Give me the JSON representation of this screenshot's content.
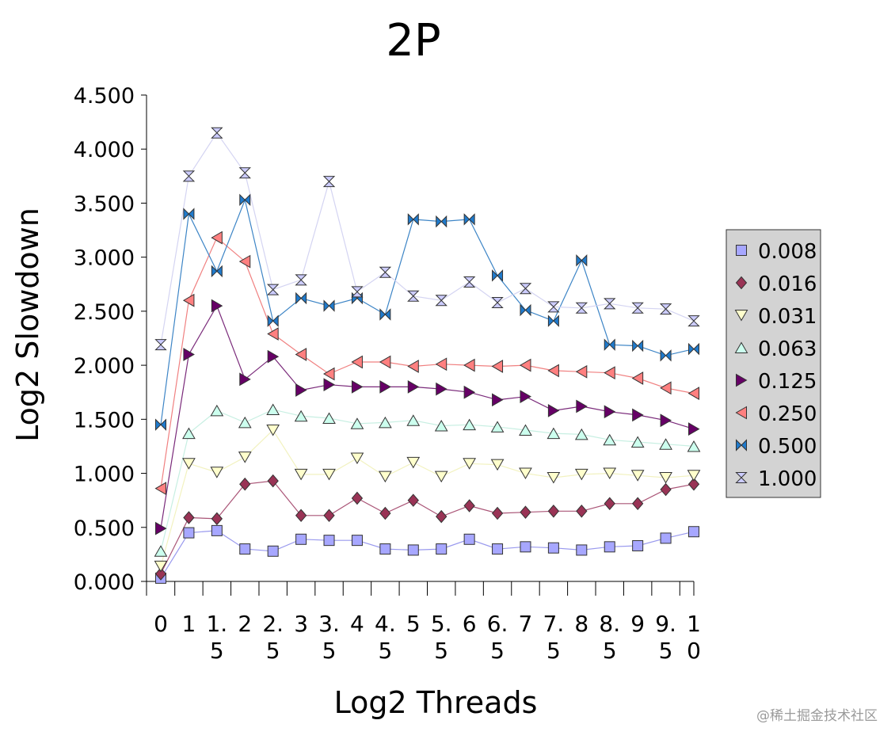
{
  "chart_data": {
    "type": "line",
    "title": "2P",
    "xlabel": "Log2 Threads",
    "ylabel": "Log2 Slowdown",
    "ylim": [
      0,
      4.5
    ],
    "yticks": [
      "0.000",
      "0.500",
      "1.000",
      "1.500",
      "2.000",
      "2.500",
      "3.000",
      "3.500",
      "4.000",
      "4.500"
    ],
    "x": [
      0,
      1,
      1.5,
      2,
      2.5,
      3,
      3.5,
      4,
      4.5,
      5,
      5.5,
      6,
      6.5,
      7,
      7.5,
      8,
      8.5,
      9,
      9.5,
      10
    ],
    "xtick_labels": [
      [
        "0"
      ],
      [
        "1"
      ],
      [
        "1.",
        "5"
      ],
      [
        "2"
      ],
      [
        "2.",
        "5"
      ],
      [
        "3"
      ],
      [
        "3.",
        "5"
      ],
      [
        "4"
      ],
      [
        "4.",
        "5"
      ],
      [
        "5"
      ],
      [
        "5.",
        "5"
      ],
      [
        "6"
      ],
      [
        "6.",
        "5"
      ],
      [
        "7"
      ],
      [
        "7.",
        "5"
      ],
      [
        "8"
      ],
      [
        "8.",
        "5"
      ],
      [
        "9"
      ],
      [
        "9.",
        "5"
      ],
      [
        "1",
        "0"
      ]
    ],
    "legend_position": "right",
    "series": [
      {
        "name": "0.008",
        "marker": "square",
        "color": "#a7a7ff",
        "line": "#9999ee",
        "values": [
          0.03,
          0.45,
          0.47,
          0.3,
          0.28,
          0.39,
          0.38,
          0.38,
          0.3,
          0.29,
          0.3,
          0.39,
          0.3,
          0.32,
          0.31,
          0.29,
          0.32,
          0.33,
          0.4,
          0.46
        ]
      },
      {
        "name": "0.016",
        "marker": "diamond",
        "color": "#993355",
        "line": "#aa5577",
        "values": [
          0.07,
          0.59,
          0.58,
          0.9,
          0.93,
          0.61,
          0.61,
          0.77,
          0.63,
          0.75,
          0.6,
          0.7,
          0.63,
          0.64,
          0.65,
          0.65,
          0.72,
          0.72,
          0.85,
          0.9
        ]
      },
      {
        "name": "0.031",
        "marker": "triangle-down",
        "color": "#ffffcc",
        "line": "#f2f2c0",
        "values": [
          0.14,
          1.09,
          1.01,
          1.15,
          1.4,
          0.99,
          0.99,
          1.14,
          0.97,
          1.1,
          0.97,
          1.09,
          1.08,
          1.0,
          0.96,
          0.99,
          1.0,
          0.98,
          0.96,
          0.98
        ]
      },
      {
        "name": "0.063",
        "marker": "triangle-up",
        "color": "#ccffee",
        "line": "#c7efe2",
        "values": [
          0.28,
          1.37,
          1.58,
          1.47,
          1.59,
          1.53,
          1.51,
          1.46,
          1.47,
          1.49,
          1.44,
          1.45,
          1.43,
          1.4,
          1.37,
          1.36,
          1.31,
          1.29,
          1.27,
          1.25
        ]
      },
      {
        "name": "0.125",
        "marker": "triangle-right",
        "color": "#660066",
        "line": "#7a2a7a",
        "values": [
          0.49,
          2.1,
          2.55,
          1.87,
          2.08,
          1.77,
          1.82,
          1.8,
          1.8,
          1.8,
          1.78,
          1.75,
          1.68,
          1.71,
          1.58,
          1.62,
          1.57,
          1.54,
          1.49,
          1.41
        ]
      },
      {
        "name": "0.250",
        "marker": "triangle-left",
        "color": "#ff8080",
        "line": "#f08080",
        "values": [
          0.86,
          2.6,
          3.18,
          2.96,
          2.29,
          2.1,
          1.92,
          2.03,
          2.03,
          1.99,
          2.01,
          2.0,
          1.99,
          2.0,
          1.95,
          1.94,
          1.93,
          1.88,
          1.79,
          1.74
        ]
      },
      {
        "name": "0.500",
        "marker": "bowtie",
        "color": "#1f7acc",
        "line": "#3d85c6",
        "values": [
          1.45,
          3.4,
          2.87,
          3.53,
          2.41,
          2.62,
          2.55,
          2.62,
          2.47,
          3.35,
          3.33,
          3.35,
          2.83,
          2.51,
          2.41,
          2.97,
          2.19,
          2.18,
          2.09,
          2.15
        ]
      },
      {
        "name": "1.000",
        "marker": "hourglass",
        "color": "#ccccff",
        "line": "#d4d4f2",
        "values": [
          2.19,
          3.75,
          4.15,
          3.78,
          2.7,
          2.79,
          3.7,
          2.68,
          2.86,
          2.64,
          2.6,
          2.77,
          2.58,
          2.71,
          2.54,
          2.53,
          2.57,
          2.53,
          2.52,
          2.41
        ]
      }
    ]
  },
  "watermark": "@稀土掘金技术社区"
}
